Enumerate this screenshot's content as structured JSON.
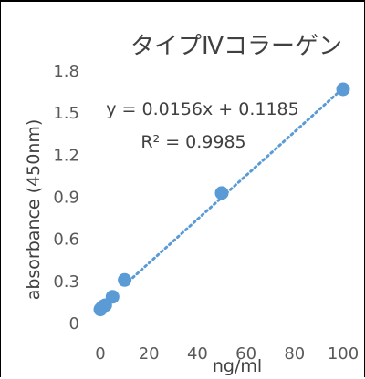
{
  "chart_data": {
    "type": "scatter",
    "title": "タイプⅣコラーゲン",
    "xlabel": "ng/ml",
    "ylabel": "absorbance (450nm)",
    "xlim": [
      0,
      100
    ],
    "ylim": [
      0,
      1.8
    ],
    "xticks": [
      "0",
      "20",
      "40",
      "60",
      "80",
      "100"
    ],
    "yticks": [
      "0",
      "0.3",
      "0.6",
      "0.9",
      "1.2",
      "1.5",
      "1.8"
    ],
    "grid": false,
    "series": [
      {
        "color": "#5b9bd5",
        "x": [
          0,
          0.5,
          1,
          2,
          5,
          10,
          50,
          100
        ],
        "y": [
          0.1,
          0.11,
          0.12,
          0.13,
          0.19,
          0.31,
          0.93,
          1.67
        ]
      }
    ],
    "trendline": {
      "type": "linear",
      "slope": 0.0156,
      "intercept": 0.1185,
      "x_range": [
        10,
        100
      ],
      "color": "#5b9bd5",
      "style": "dotted",
      "equation": "y = 0.0156x + 0.1185",
      "r_squared": "R² = 0.9985"
    }
  }
}
